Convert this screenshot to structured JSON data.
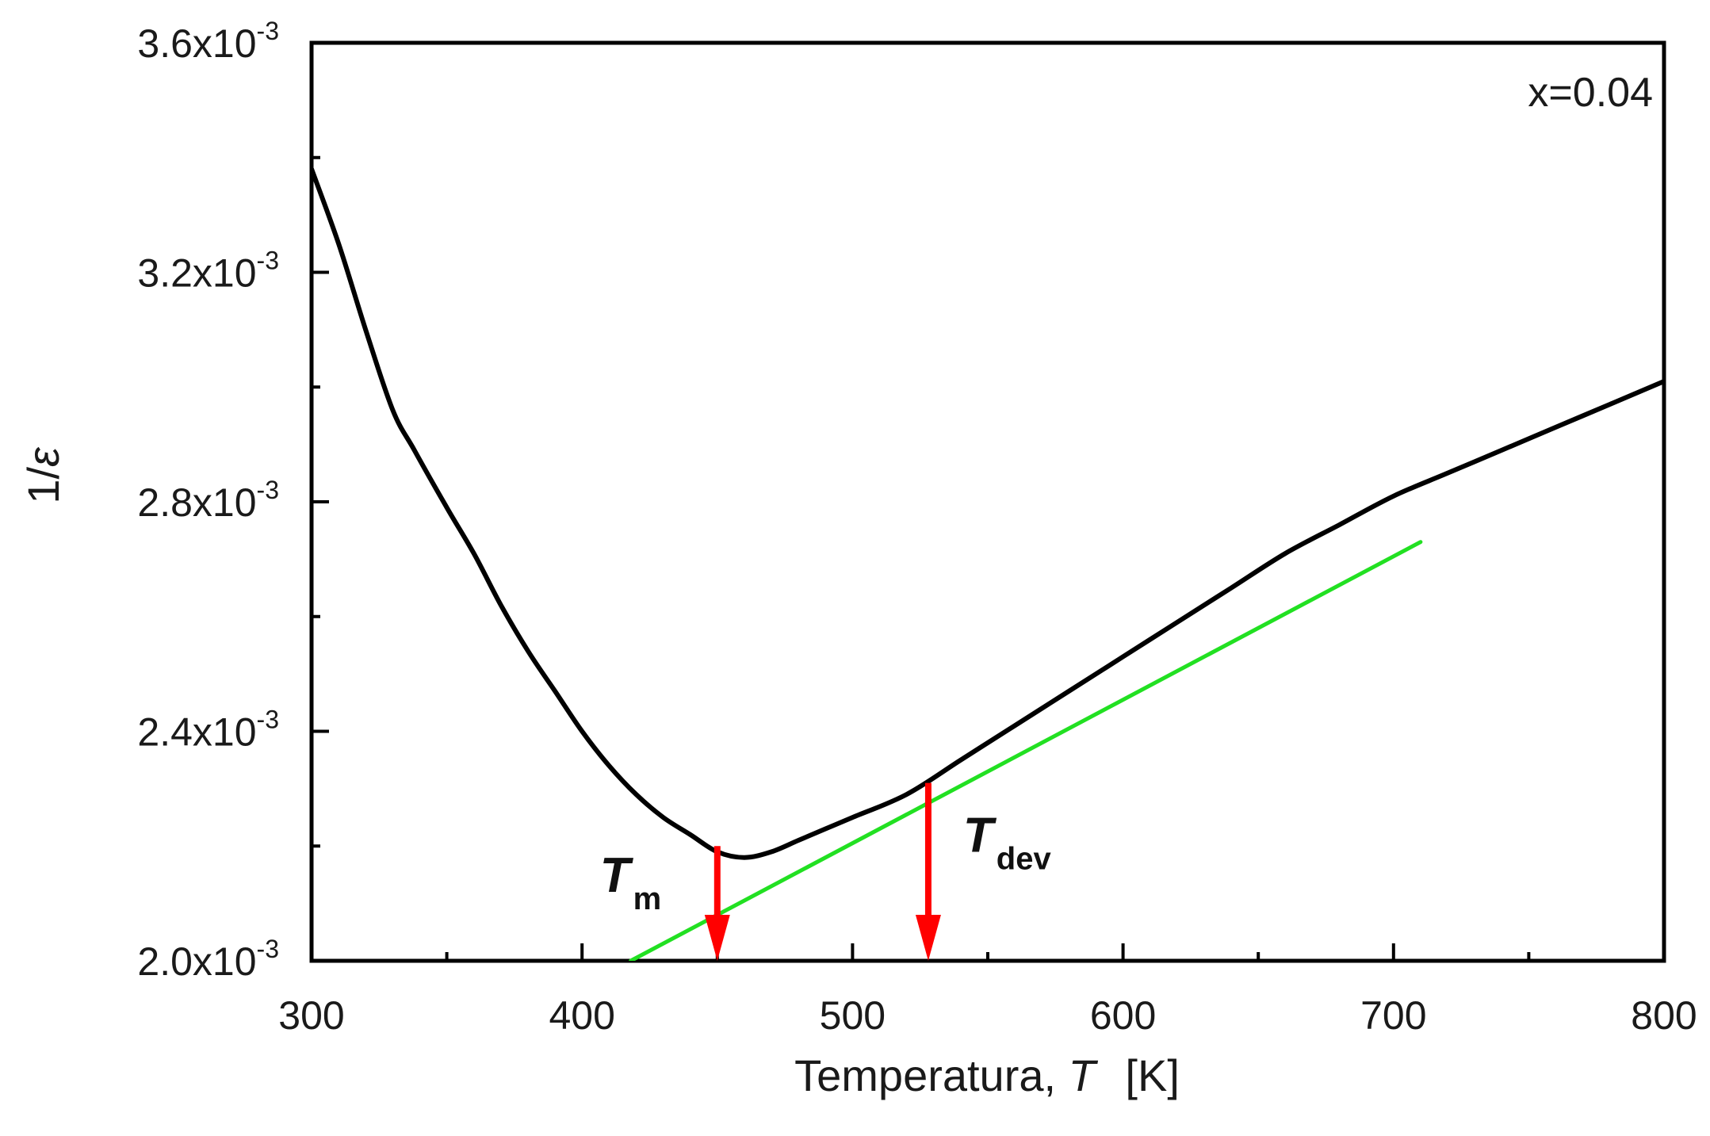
{
  "chart_data": {
    "type": "line",
    "xlabel_text": "Temperatura, ",
    "xlabel_symbol": "T",
    "xlabel_unit": "[K]",
    "ylabel_prefix": "1/",
    "ylabel_symbol": "ε",
    "xlim": [
      300,
      800
    ],
    "ylim": [
      0.002,
      0.0036
    ],
    "x_ticks": [
      "300",
      "400",
      "500",
      "600",
      "700",
      "800"
    ],
    "x_tick_values": [
      300,
      400,
      500,
      600,
      700,
      800
    ],
    "y_ticks": [
      {
        "value": 0.002,
        "mantissa": "2.0x10",
        "exponent": "-3"
      },
      {
        "value": 0.0024,
        "mantissa": "2.4x10",
        "exponent": "-3"
      },
      {
        "value": 0.0028,
        "mantissa": "2.8x10",
        "exponent": "-3"
      },
      {
        "value": 0.0032,
        "mantissa": "3.2x10",
        "exponent": "-3"
      },
      {
        "value": 0.0036,
        "mantissa": "3.6x10",
        "exponent": "-3"
      }
    ],
    "annotation": "x=0.04",
    "series": [
      {
        "name": "1/ε",
        "color": "#000000",
        "x": [
          300,
          310,
          320,
          330,
          338,
          350,
          360,
          370,
          380,
          390,
          400,
          410,
          420,
          430,
          440,
          450,
          460,
          470,
          480,
          490,
          500,
          520,
          540,
          560,
          580,
          600,
          620,
          640,
          660,
          680,
          700,
          720,
          740,
          760,
          780,
          800
        ],
        "y": [
          0.00338,
          0.00325,
          0.0031,
          0.00296,
          0.00289,
          0.00279,
          0.00271,
          0.00262,
          0.00254,
          0.00247,
          0.0024,
          0.00234,
          0.00229,
          0.00225,
          0.00222,
          0.00219,
          0.00218,
          0.00219,
          0.00221,
          0.00223,
          0.00225,
          0.00229,
          0.00235,
          0.00241,
          0.00247,
          0.00253,
          0.00259,
          0.00265,
          0.00271,
          0.00276,
          0.00281,
          0.00285,
          0.00289,
          0.00293,
          0.00297,
          0.00301
        ]
      },
      {
        "name": "linear fit",
        "color": "#22e022",
        "x": [
          418,
          710
        ],
        "y": [
          0.002,
          0.00273
        ]
      }
    ],
    "markers": [
      {
        "name": "T_m",
        "symbol": "T",
        "subscript": "m",
        "x": 450,
        "y_start": 0.0022,
        "y_end": 0.002,
        "color": "#ff0000"
      },
      {
        "name": "T_dev",
        "symbol": "T",
        "subscript": "dev",
        "x": 528,
        "y_start": 0.00231,
        "y_end": 0.002,
        "color": "#ff0000"
      }
    ]
  }
}
